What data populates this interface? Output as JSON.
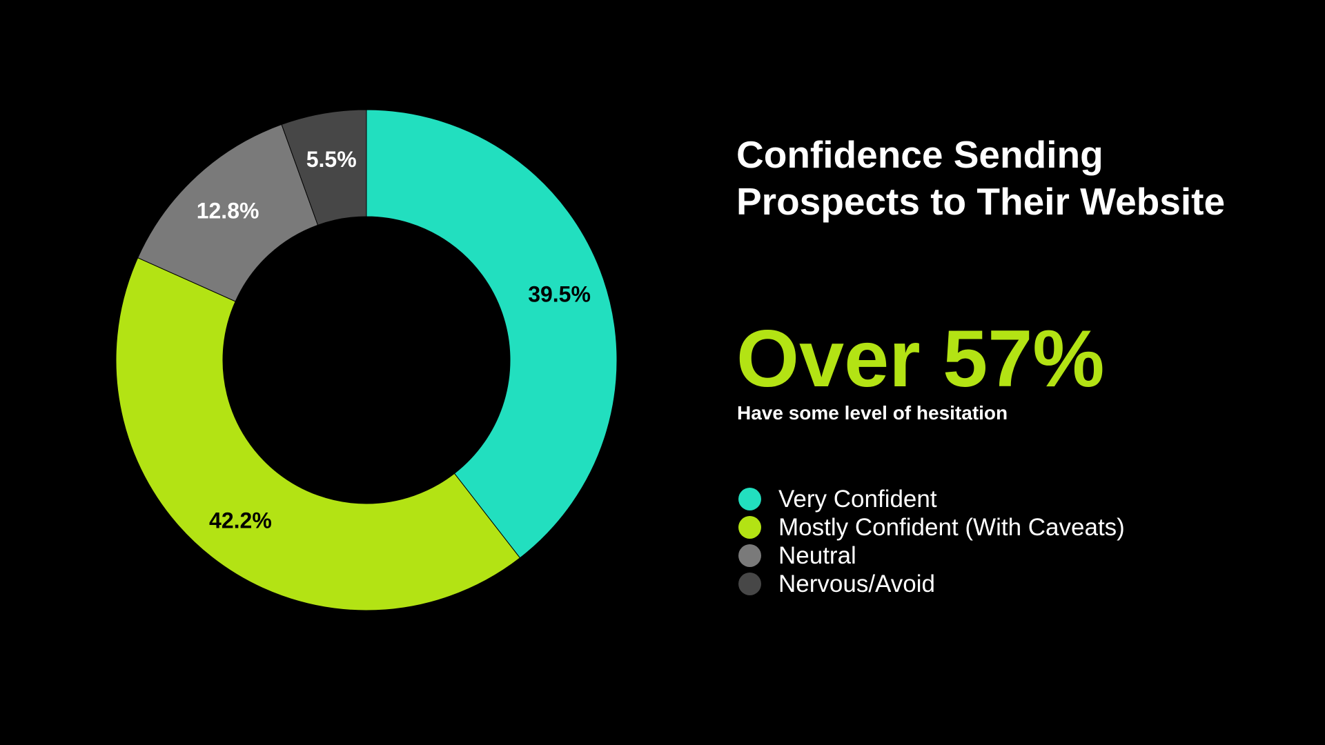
{
  "title_lines": [
    "Confidence Sending",
    "Prospects to Their Website"
  ],
  "headline": "Over 57%",
  "subhead": "Have some level of hesitation",
  "colors": {
    "background": "#000000",
    "accent": "#b3e314",
    "text": "#ffffff"
  },
  "chart_data": {
    "type": "pie",
    "donut": true,
    "categories": [
      "Very Confident",
      "Mostly Confident (With Caveats)",
      "Neutral",
      "Nervous/Avoid"
    ],
    "values": [
      39.5,
      42.2,
      12.8,
      5.5
    ],
    "labels": [
      "39.5%",
      "42.2%",
      "12.8%",
      "5.5%"
    ],
    "colors": [
      "#22dfbf",
      "#b3e314",
      "#7a7a7a",
      "#474747"
    ],
    "label_colors": [
      "#000000",
      "#000000",
      "#ffffff",
      "#ffffff"
    ],
    "start": "top",
    "direction": "clockwise",
    "legend_position": "right"
  }
}
